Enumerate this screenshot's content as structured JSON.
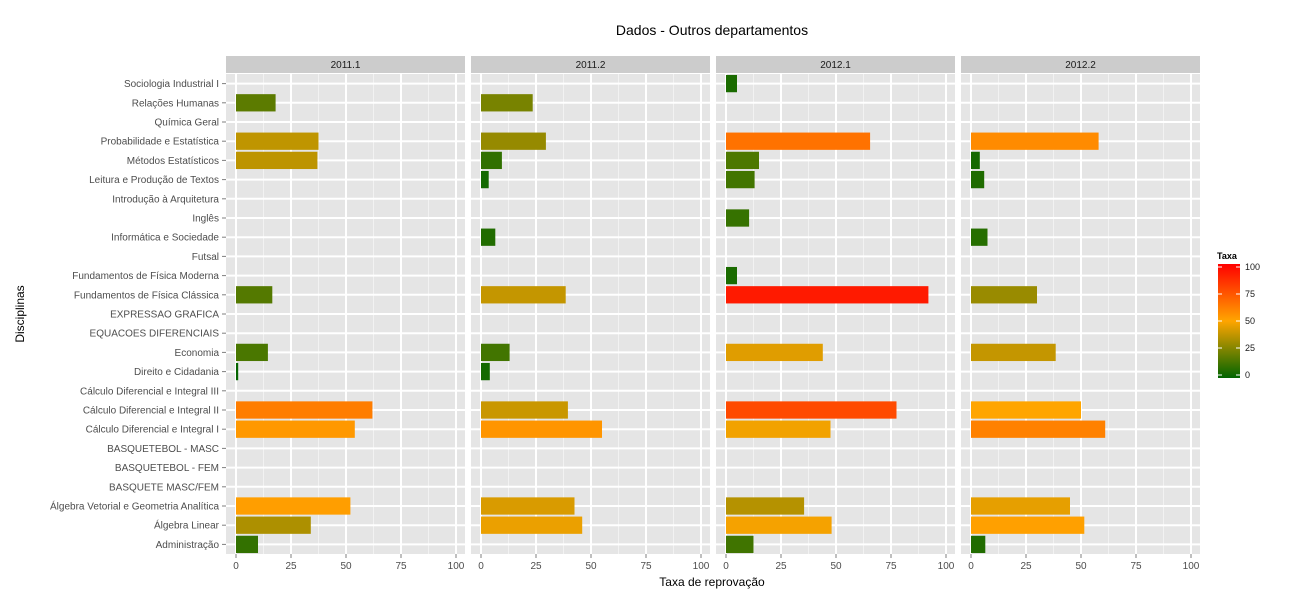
{
  "chart_data": {
    "type": "bar",
    "orientation": "horizontal",
    "title": "Dados - Outros departamentos",
    "xlabel": "Taxa de reprovação",
    "ylabel": "Disciplinas",
    "xlim": [
      0,
      100
    ],
    "x_ticks": [
      "0",
      "25",
      "50",
      "75",
      "100"
    ],
    "grid": true,
    "legend": {
      "title": "Taxa",
      "ticks": [
        "0",
        "25",
        "50",
        "75",
        "100"
      ],
      "placement": "right",
      "colors": [
        "#006400",
        "#FFA500",
        "#FF0000"
      ]
    },
    "categories": [
      "Administração",
      "Álgebra Linear",
      "Álgebra Vetorial e Geometria Analítica",
      "BASQUETE   MASC/FEM",
      "BASQUETEBOL - FEM",
      "BASQUETEBOL - MASC",
      "Cálculo Diferencial e Integral I",
      "Cálculo Diferencial e Integral II",
      "Cálculo Diferencial e Integral III",
      "Direito e Cidadania",
      "Economia",
      "EQUACOES DIFERENCIAIS",
      "EXPRESSAO GRAFICA",
      "Fundamentos de Física Clássica",
      "Fundamentos de Física Moderna",
      "Futsal",
      "Informática e Sociedade",
      "Inglês",
      "Introdução à Arquitetura",
      "Leitura e Produção de Textos",
      "Métodos Estatísticos",
      "Probabilidade e Estatística",
      "Química Geral",
      "Relações Humanas",
      "Sociologia Industrial I"
    ],
    "series": [
      {
        "name": "2011.1",
        "values": [
          10,
          34,
          52,
          null,
          null,
          null,
          54,
          62,
          null,
          1,
          14.5,
          null,
          null,
          16.5,
          null,
          null,
          null,
          null,
          null,
          null,
          37,
          37.5,
          null,
          18,
          null
        ]
      },
      {
        "name": "2011.2",
        "values": [
          null,
          46,
          42.5,
          null,
          null,
          null,
          55,
          39.5,
          null,
          4,
          13,
          null,
          null,
          38.5,
          null,
          null,
          6.5,
          null,
          null,
          3.5,
          9.5,
          29.5,
          null,
          23.5,
          null
        ]
      },
      {
        "name": "2012.1",
        "values": [
          12.5,
          48,
          35.5,
          null,
          null,
          null,
          47.5,
          77.5,
          null,
          null,
          44,
          null,
          null,
          92,
          5,
          null,
          null,
          10.5,
          null,
          13,
          15,
          65.5,
          null,
          null,
          5
        ]
      },
      {
        "name": "2012.2",
        "values": [
          6.5,
          51.5,
          45,
          null,
          null,
          null,
          61,
          50,
          null,
          null,
          38.5,
          null,
          null,
          30,
          null,
          null,
          7.5,
          null,
          null,
          6,
          4,
          58,
          null,
          null,
          null
        ]
      }
    ]
  }
}
